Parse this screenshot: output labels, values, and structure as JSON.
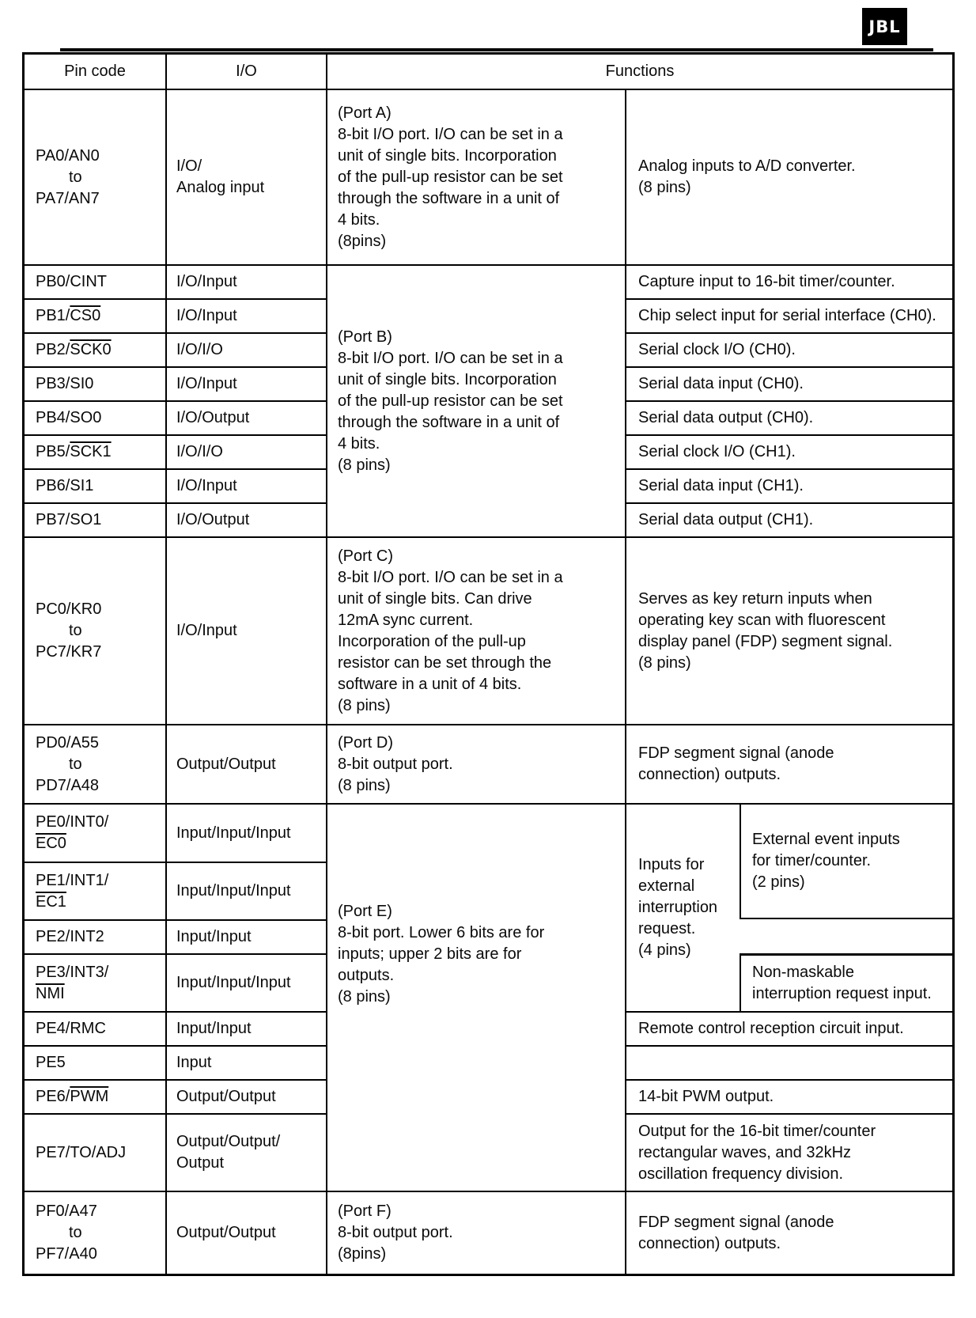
{
  "page": {
    "logo_text": "JBL"
  },
  "table": {
    "header": {
      "pin": "Pin code",
      "io": "I/O",
      "functions": "Functions"
    },
    "port_a": {
      "pin_top": "PA0/AN0",
      "pin_mid": "to",
      "pin_bot": "PA7/AN7",
      "io": "I/O/\nAnalog input",
      "desc": "(Port A)\n8-bit I/O port. I/O can be set in a\nunit of single bits. Incorporation\nof the pull-up resistor can be set\nthrough the software in a unit of\n4 bits.\n(8pins)",
      "func": "Analog inputs to A/D converter.\n(8 pins)"
    },
    "port_b": {
      "desc": "(Port B)\n8-bit I/O port. I/O can be set in a\nunit of single bits. Incorporation\nof the pull-up resistor can be set\nthrough the software in a unit of\n4 bits.\n(8 pins)",
      "rows": [
        {
          "pin": "PB0/CINT",
          "pin_over": "",
          "io": "I/O/Input",
          "func": "Capture input to 16-bit timer/counter."
        },
        {
          "pin": "PB1/",
          "pin_over": "CS0",
          "io": "I/O/Input",
          "func": "Chip select input for serial interface (CH0)."
        },
        {
          "pin": "PB2/",
          "pin_over": "SCK0",
          "io": "I/O/I/O",
          "func": "Serial clock I/O (CH0)."
        },
        {
          "pin": "PB3/SI0",
          "pin_over": "",
          "io": "I/O/Input",
          "func": "Serial data input (CH0)."
        },
        {
          "pin": "PB4/SO0",
          "pin_over": "",
          "io": "I/O/Output",
          "func": "Serial data output (CH0)."
        },
        {
          "pin": "PB5/",
          "pin_over": "SCK1",
          "io": "I/O/I/O",
          "func": "Serial clock I/O (CH1)."
        },
        {
          "pin": "PB6/SI1",
          "pin_over": "",
          "io": "I/O/Input",
          "func": "Serial data input (CH1)."
        },
        {
          "pin": "PB7/SO1",
          "pin_over": "",
          "io": "I/O/Output",
          "func": "Serial data output (CH1)."
        }
      ]
    },
    "port_c": {
      "pin_top": "PC0/KR0",
      "pin_mid": "to",
      "pin_bot": "PC7/KR7",
      "io": "I/O/Input",
      "desc": "(Port C)\n8-bit I/O port. I/O can be set in a\nunit of single bits. Can drive\n12mA sync current.\nIncorporation of the pull-up\nresistor can be set through the\nsoftware in a unit of 4 bits.\n(8 pins)",
      "func": "Serves as key return inputs when\noperating key scan with fluorescent\ndisplay panel (FDP) segment signal.\n(8 pins)"
    },
    "port_d": {
      "pin_top": "PD0/A55",
      "pin_mid": "to",
      "pin_bot": "PD7/A48",
      "io": "Output/Output",
      "desc": "(Port D)\n8-bit output port.\n(8 pins)",
      "func": "FDP segment signal (anode\nconnection) outputs."
    },
    "port_e": {
      "desc": "(Port E)\n8-bit port. Lower 6 bits are for\ninputs; upper 2 bits are for\noutputs.\n(8 pins)",
      "rows": [
        {
          "p1": "PE0/INT0/",
          "o1": "",
          "o2": "EC0",
          "io": "Input/Input/Input"
        },
        {
          "p1": "PE1/INT1/",
          "o1": "",
          "o2": "EC1",
          "io": "Input/Input/Input"
        },
        {
          "p1": "PE2/INT2",
          "o1": "",
          "o2": "",
          "io": "Input/Input"
        },
        {
          "p1": "PE3/INT3/",
          "o1": "",
          "o2": "NMI",
          "io": "Input/Input/Input"
        },
        {
          "p1": "PE4/RMC",
          "o1": "",
          "o2": "",
          "io": "Input/Input"
        },
        {
          "p1": "PE5",
          "o1": "",
          "o2": "",
          "io": "Input"
        },
        {
          "p1": "PE6/",
          "o1": "PWM",
          "o2": "",
          "io": "Output/Output"
        },
        {
          "p1": "PE7/TO/ADJ",
          "o1": "",
          "o2": "",
          "io": "Output/Output/\nOutput"
        }
      ],
      "func_ext_interrupt": "Inputs for\nexternal\ninterruption\nrequest.\n(4 pins)",
      "func_ext_event": "External event inputs\nfor timer/counter.\n(2 pins)",
      "func_nmi": "Non-maskable\ninterruption request input.",
      "func_remote": "Remote control reception circuit input.",
      "func_empty": "",
      "func_pwm": "14-bit PWM output.",
      "func_timer_out": "Output for the 16-bit timer/counter\nrectangular waves, and 32kHz\noscillation frequency division."
    },
    "port_f": {
      "pin_top": "PF0/A47",
      "pin_mid": "to",
      "pin_bot": "PF7/A40",
      "io": "Output/Output",
      "desc": "(Port F)\n8-bit output port.\n(8pins)",
      "func": "FDP segment signal (anode\nconnection) outputs."
    }
  }
}
